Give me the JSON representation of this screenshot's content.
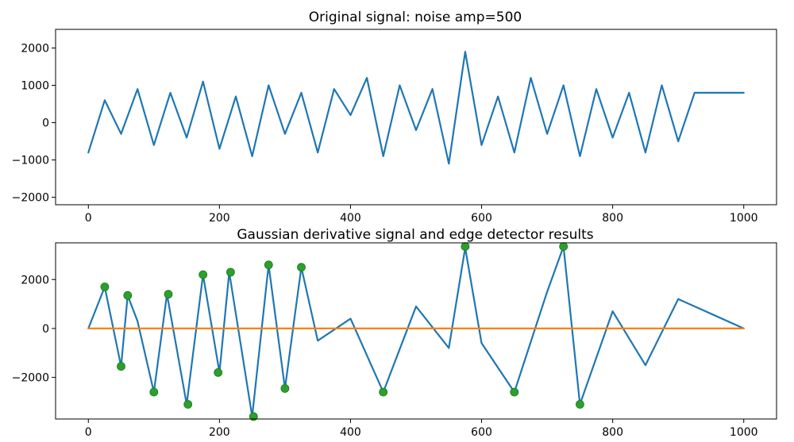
{
  "chart_data": [
    {
      "type": "line",
      "title": "Original signal: noise amp=500",
      "xlabel": "",
      "ylabel": "",
      "xlim": [
        -50,
        1050
      ],
      "ylim": [
        -2200,
        2500
      ],
      "xticks": [
        0,
        200,
        400,
        600,
        800,
        1000
      ],
      "yticks": [
        -2000,
        -1000,
        0,
        1000,
        2000
      ],
      "grid": false,
      "series": [
        {
          "color": "#1f77b4",
          "x": [
            0,
            25,
            50,
            75,
            100,
            125,
            150,
            175,
            200,
            225,
            250,
            275,
            300,
            325,
            350,
            375,
            400,
            425,
            450,
            475,
            500,
            525,
            550,
            575,
            600,
            625,
            650,
            675,
            700,
            725,
            750,
            775,
            800,
            825,
            850,
            875,
            900,
            925,
            1000
          ],
          "y": [
            -800,
            600,
            -300,
            900,
            -600,
            800,
            -400,
            1100,
            -700,
            700,
            -900,
            1000,
            -300,
            800,
            -800,
            900,
            200,
            1200,
            -900,
            1000,
            -200,
            900,
            -1100,
            1900,
            -600,
            700,
            -800,
            1200,
            -300,
            1000,
            -900,
            900,
            -400,
            800,
            -800,
            1000,
            -500,
            800,
            800
          ]
        }
      ]
    },
    {
      "type": "line",
      "title": "Gaussian derivative signal and edge detector results",
      "xlabel": "",
      "ylabel": "",
      "xlim": [
        -50,
        1050
      ],
      "ylim": [
        -3700,
        3500
      ],
      "xticks": [
        0,
        200,
        400,
        600,
        800,
        1000
      ],
      "yticks": [
        -2000,
        0,
        2000
      ],
      "grid": false,
      "series": [
        {
          "color": "#1f77b4",
          "x": [
            0,
            25,
            50,
            60,
            75,
            100,
            120,
            150,
            175,
            200,
            215,
            250,
            275,
            300,
            325,
            350,
            400,
            450,
            500,
            550,
            575,
            600,
            650,
            700,
            725,
            750,
            800,
            850,
            900,
            1000
          ],
          "y": [
            0,
            1700,
            -1550,
            1350,
            300,
            -2600,
            1400,
            -3100,
            2200,
            -1800,
            2300,
            -3600,
            2600,
            -2450,
            2500,
            -500,
            400,
            -2600,
            900,
            -800,
            3300,
            -600,
            -2600,
            1500,
            3350,
            -3100,
            700,
            -1500,
            1200,
            0
          ]
        },
        {
          "color": "#ff7f0e",
          "x": [
            0,
            1000
          ],
          "y": [
            0,
            0
          ]
        }
      ],
      "markers": {
        "color": "#2ca02c",
        "x": [
          25,
          50,
          60,
          100,
          122,
          152,
          175,
          198,
          217,
          252,
          275,
          300,
          325,
          450,
          575,
          650,
          725,
          750
        ],
        "y": [
          1700,
          -1550,
          1350,
          -2600,
          1400,
          -3100,
          2200,
          -1800,
          2300,
          -3600,
          2600,
          -2450,
          2500,
          -2600,
          3350,
          -2600,
          3350,
          -3100
        ]
      }
    }
  ]
}
